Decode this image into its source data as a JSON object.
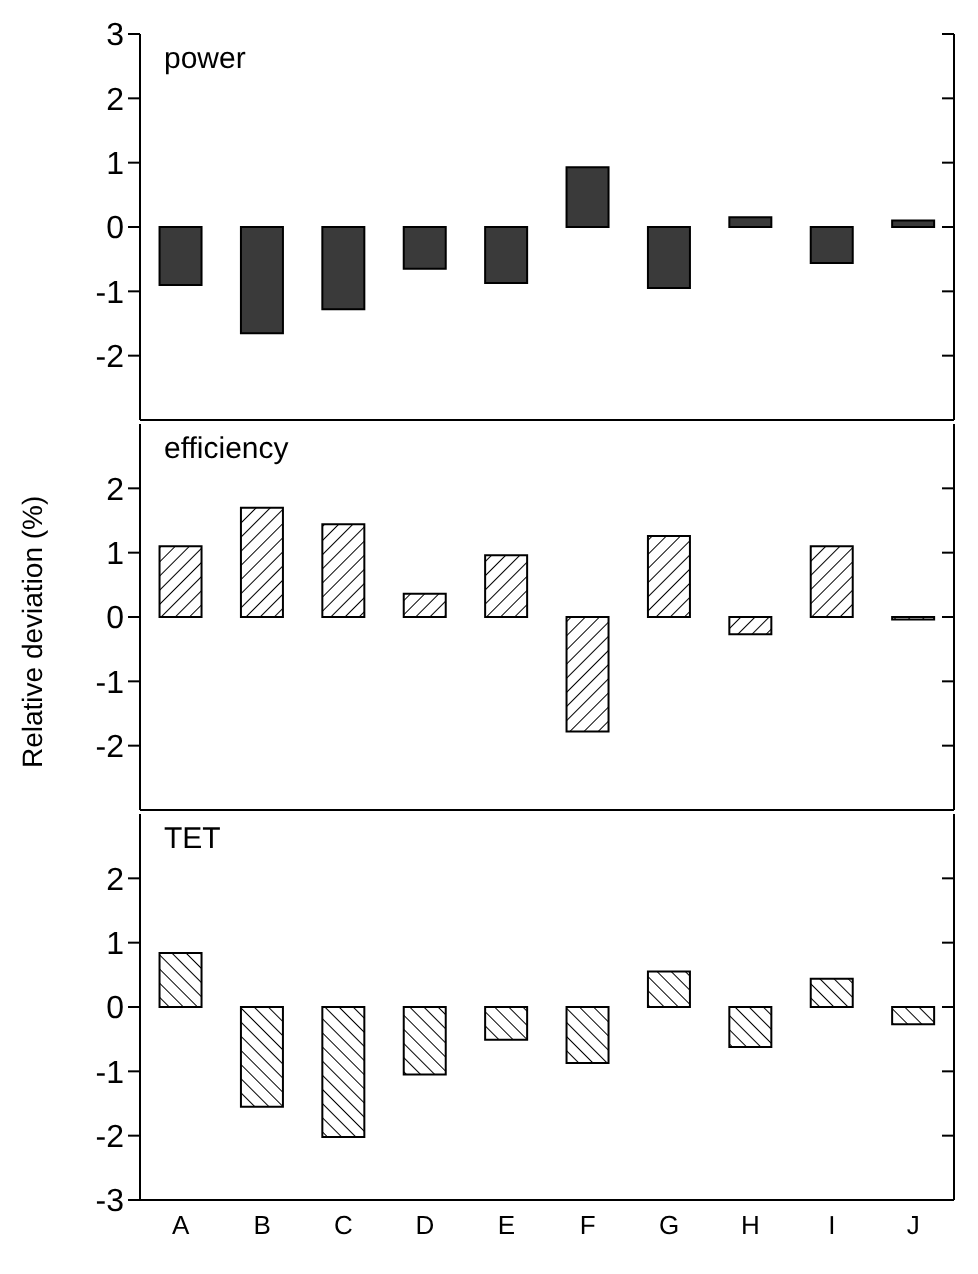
{
  "chart_data": [
    {
      "type": "bar",
      "title": "power",
      "categories": [
        null,
        null,
        null,
        null,
        null,
        null,
        null,
        null,
        null,
        null
      ],
      "values": [
        -0.9,
        -1.65,
        -1.28,
        -0.65,
        -0.87,
        0.93,
        -0.95,
        0.15,
        -0.56,
        0.1
      ],
      "color": "#3a3a3a",
      "ylim": [
        -3,
        3
      ],
      "yticks": [
        3,
        2,
        1,
        0,
        -1,
        -2
      ],
      "tick_labels": "y"
    },
    {
      "type": "bar",
      "title": "efficiency",
      "ylabel": "Relative deviation (%)",
      "categories": [
        null,
        null,
        null,
        null,
        null,
        null,
        null,
        null,
        null,
        null
      ],
      "values": [
        1.1,
        1.7,
        1.44,
        0.36,
        0.96,
        -1.78,
        1.26,
        -0.27,
        1.1,
        -0.04
      ],
      "color": "#000000",
      "ylim": [
        -3,
        3
      ],
      "yticks": [
        2,
        1,
        0,
        -1,
        -2
      ],
      "tick_labels": "y"
    },
    {
      "type": "bar",
      "title": "TET",
      "categories": [
        "A",
        "B",
        "C",
        "D",
        "E",
        "F",
        "G",
        "H",
        "I",
        "J"
      ],
      "values": [
        0.84,
        -1.55,
        -2.02,
        -1.05,
        -0.51,
        -0.87,
        0.55,
        -0.62,
        0.44,
        -0.27
      ],
      "color": "#000000",
      "ylim": [
        -3,
        3
      ],
      "yticks": [
        2,
        1,
        0,
        -1,
        -2,
        -3
      ]
    }
  ]
}
